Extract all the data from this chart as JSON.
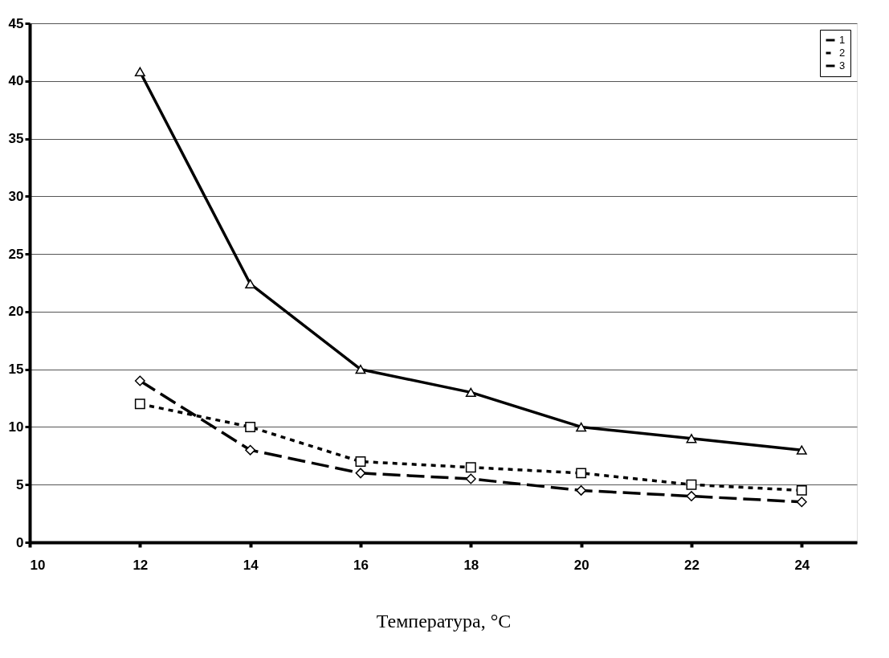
{
  "chart_data": {
    "type": "line",
    "xlabel": "Температура, °C",
    "x": [
      12,
      14,
      16,
      18,
      20,
      22,
      24
    ],
    "series": [
      {
        "name": "1",
        "color": "#000000",
        "values": [
          14,
          8,
          6,
          5.5,
          4.5,
          4,
          3.5
        ],
        "marker": "diamond",
        "line_style": "dashed"
      },
      {
        "name": "2",
        "color": "#000000",
        "values": [
          12,
          10,
          7,
          6.5,
          6,
          5,
          4.5
        ],
        "marker": "square",
        "line_style": "dotted"
      },
      {
        "name": "3",
        "color": "#000000",
        "values": [
          40.8,
          22.4,
          15,
          13,
          10,
          9,
          8
        ],
        "marker": "triangle",
        "line_style": "solid"
      }
    ],
    "xlim": [
      10,
      25
    ],
    "xticks": [
      10,
      12,
      14,
      16,
      18,
      20,
      22,
      24
    ],
    "ylim": [
      0,
      45
    ],
    "yticks": [
      0,
      5,
      10,
      15,
      20,
      25,
      30,
      35,
      40,
      45
    ],
    "grid": "y",
    "legend": "top right"
  }
}
